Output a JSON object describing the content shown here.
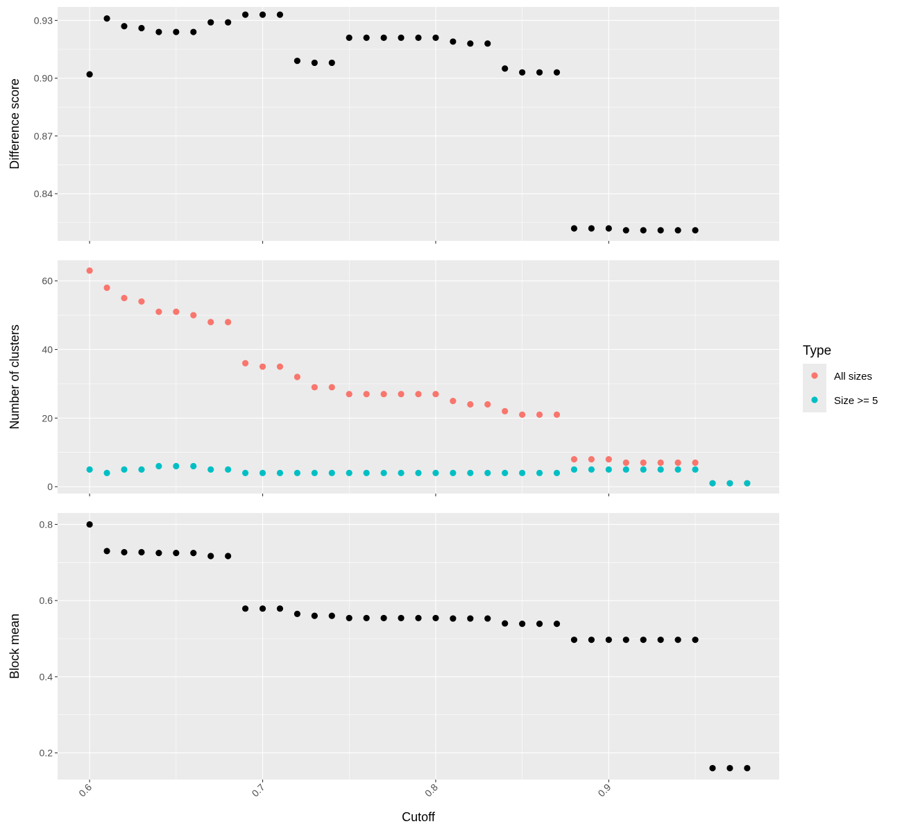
{
  "chart_data": {
    "type": "scatter",
    "xlabel": "Cutoff",
    "x_ticks": [
      "0.6",
      "0.7",
      "0.8",
      "0.9"
    ],
    "xlim": [
      0.5815,
      0.9985
    ],
    "legend": {
      "title": "Type",
      "placement": "right",
      "items": [
        {
          "label": "All sizes",
          "color": "#F8766D"
        },
        {
          "label": "Size >= 5",
          "color": "#00BFC4"
        }
      ]
    },
    "panels": [
      {
        "ylabel": "Difference score",
        "ylim": [
          0.8155,
          0.937
        ],
        "y_ticks": [
          "0.84",
          "0.87",
          "0.90",
          "0.93"
        ],
        "series": [
          {
            "color": "#000000",
            "x": [
              0.6,
              0.61,
              0.62,
              0.63,
              0.64,
              0.65,
              0.66,
              0.67,
              0.68,
              0.69,
              0.7,
              0.71,
              0.72,
              0.73,
              0.74,
              0.75,
              0.76,
              0.77,
              0.78,
              0.79,
              0.8,
              0.81,
              0.82,
              0.83,
              0.84,
              0.85,
              0.86,
              0.87,
              0.88,
              0.89,
              0.9,
              0.91,
              0.92,
              0.93,
              0.94,
              0.95
            ],
            "y": [
              0.902,
              0.931,
              0.927,
              0.926,
              0.924,
              0.924,
              0.924,
              0.929,
              0.929,
              0.933,
              0.933,
              0.933,
              0.909,
              0.908,
              0.908,
              0.921,
              0.921,
              0.921,
              0.921,
              0.921,
              0.921,
              0.919,
              0.918,
              0.918,
              0.905,
              0.903,
              0.903,
              0.903,
              0.822,
              0.822,
              0.822,
              0.821,
              0.821,
              0.821,
              0.821,
              0.821
            ]
          }
        ]
      },
      {
        "ylabel": "Number of clusters",
        "ylim": [
          -2,
          66
        ],
        "y_ticks": [
          "0",
          "20",
          "40",
          "60"
        ],
        "series": [
          {
            "name": "All sizes",
            "color": "#F8766D",
            "x": [
              0.6,
              0.61,
              0.62,
              0.63,
              0.64,
              0.65,
              0.66,
              0.67,
              0.68,
              0.69,
              0.7,
              0.71,
              0.72,
              0.73,
              0.74,
              0.75,
              0.76,
              0.77,
              0.78,
              0.79,
              0.8,
              0.81,
              0.82,
              0.83,
              0.84,
              0.85,
              0.86,
              0.87,
              0.88,
              0.89,
              0.9,
              0.91,
              0.92,
              0.93,
              0.94,
              0.95,
              0.96,
              0.97,
              0.98
            ],
            "y": [
              63,
              58,
              55,
              54,
              51,
              51,
              50,
              48,
              48,
              36,
              35,
              35,
              32,
              29,
              29,
              27,
              27,
              27,
              27,
              27,
              27,
              25,
              24,
              24,
              22,
              21,
              21,
              21,
              8,
              8,
              8,
              7,
              7,
              7,
              7,
              7,
              1,
              1,
              1
            ]
          },
          {
            "name": "Size >= 5",
            "color": "#00BFC4",
            "x": [
              0.6,
              0.61,
              0.62,
              0.63,
              0.64,
              0.65,
              0.66,
              0.67,
              0.68,
              0.69,
              0.7,
              0.71,
              0.72,
              0.73,
              0.74,
              0.75,
              0.76,
              0.77,
              0.78,
              0.79,
              0.8,
              0.81,
              0.82,
              0.83,
              0.84,
              0.85,
              0.86,
              0.87,
              0.88,
              0.89,
              0.9,
              0.91,
              0.92,
              0.93,
              0.94,
              0.95,
              0.96,
              0.97,
              0.98
            ],
            "y": [
              5,
              4,
              5,
              5,
              6,
              6,
              6,
              5,
              5,
              4,
              4,
              4,
              4,
              4,
              4,
              4,
              4,
              4,
              4,
              4,
              4,
              4,
              4,
              4,
              4,
              4,
              4,
              4,
              5,
              5,
              5,
              5,
              5,
              5,
              5,
              5,
              1,
              1,
              1
            ]
          }
        ]
      },
      {
        "ylabel": "Block mean",
        "ylim": [
          0.13,
          0.83
        ],
        "y_ticks": [
          "0.2",
          "0.4",
          "0.6",
          "0.8"
        ],
        "series": [
          {
            "color": "#000000",
            "x": [
              0.6,
              0.61,
              0.62,
              0.63,
              0.64,
              0.65,
              0.66,
              0.67,
              0.68,
              0.69,
              0.7,
              0.71,
              0.72,
              0.73,
              0.74,
              0.75,
              0.76,
              0.77,
              0.78,
              0.79,
              0.8,
              0.81,
              0.82,
              0.83,
              0.84,
              0.85,
              0.86,
              0.87,
              0.88,
              0.89,
              0.9,
              0.91,
              0.92,
              0.93,
              0.94,
              0.95,
              0.96,
              0.97,
              0.98
            ],
            "y": [
              0.8,
              0.73,
              0.727,
              0.727,
              0.725,
              0.725,
              0.725,
              0.717,
              0.717,
              0.579,
              0.579,
              0.579,
              0.565,
              0.56,
              0.56,
              0.554,
              0.554,
              0.554,
              0.554,
              0.554,
              0.554,
              0.553,
              0.553,
              0.553,
              0.54,
              0.539,
              0.539,
              0.539,
              0.497,
              0.497,
              0.497,
              0.497,
              0.497,
              0.497,
              0.497,
              0.497,
              0.16,
              0.16,
              0.16
            ]
          }
        ]
      }
    ]
  }
}
